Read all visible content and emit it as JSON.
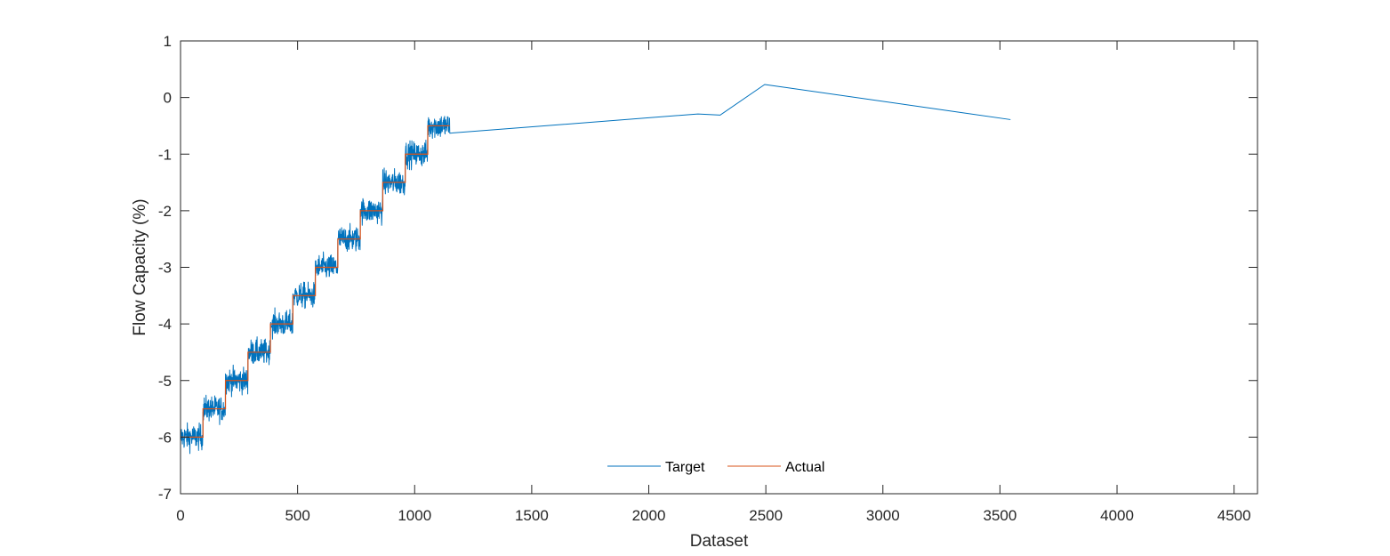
{
  "chart_data": {
    "type": "line",
    "title": "",
    "xlabel": "Dataset",
    "ylabel": "Flow Capacity (%)",
    "xlim": [
      0,
      4600
    ],
    "ylim": [
      -7,
      1
    ],
    "xticks": [
      0,
      500,
      1000,
      1500,
      2000,
      2500,
      3000,
      3500,
      4000,
      4500
    ],
    "yticks": [
      1,
      0,
      -1,
      -2,
      -3,
      -4,
      -5,
      -6,
      -7
    ],
    "grid": false,
    "legend": {
      "location": "bottom-center",
      "orientation": "horizontal"
    },
    "series": [
      {
        "name": "Target",
        "color": "#0072BD",
        "noise_sections": [
          {
            "x_start": 0,
            "x_end": 96,
            "level": -6.0
          },
          {
            "x_start": 96,
            "x_end": 192,
            "level": -5.5
          },
          {
            "x_start": 192,
            "x_end": 288,
            "level": -5.0
          },
          {
            "x_start": 288,
            "x_end": 384,
            "level": -4.5
          },
          {
            "x_start": 384,
            "x_end": 480,
            "level": -4.0
          },
          {
            "x_start": 480,
            "x_end": 576,
            "level": -3.5
          },
          {
            "x_start": 576,
            "x_end": 672,
            "level": -3.0
          },
          {
            "x_start": 672,
            "x_end": 768,
            "level": -2.5
          },
          {
            "x_start": 768,
            "x_end": 864,
            "level": -2.0
          },
          {
            "x_start": 864,
            "x_end": 960,
            "level": -1.5
          },
          {
            "x_start": 960,
            "x_end": 1056,
            "level": -1.0
          },
          {
            "x_start": 1056,
            "x_end": 1150,
            "level": -0.5
          }
        ],
        "tail_points": [
          [
            1150,
            -0.63
          ],
          [
            2210,
            -0.29
          ],
          [
            2305,
            -0.31
          ],
          [
            2495,
            0.23
          ],
          [
            3545,
            -0.39
          ]
        ]
      },
      {
        "name": "Actual",
        "color": "#D95319",
        "steps": [
          {
            "x_start": 0,
            "x_end": 96,
            "y": -6.0
          },
          {
            "x_start": 96,
            "x_end": 192,
            "y": -5.5
          },
          {
            "x_start": 192,
            "x_end": 288,
            "y": -5.0
          },
          {
            "x_start": 288,
            "x_end": 384,
            "y": -4.5
          },
          {
            "x_start": 384,
            "x_end": 480,
            "y": -4.0
          },
          {
            "x_start": 480,
            "x_end": 576,
            "y": -3.5
          },
          {
            "x_start": 576,
            "x_end": 672,
            "y": -3.0
          },
          {
            "x_start": 672,
            "x_end": 768,
            "y": -2.5
          },
          {
            "x_start": 768,
            "x_end": 864,
            "y": -2.0
          },
          {
            "x_start": 864,
            "x_end": 960,
            "y": -1.5
          },
          {
            "x_start": 960,
            "x_end": 1056,
            "y": -1.0
          },
          {
            "x_start": 1056,
            "x_end": 1150,
            "y": -0.5
          }
        ]
      }
    ]
  }
}
